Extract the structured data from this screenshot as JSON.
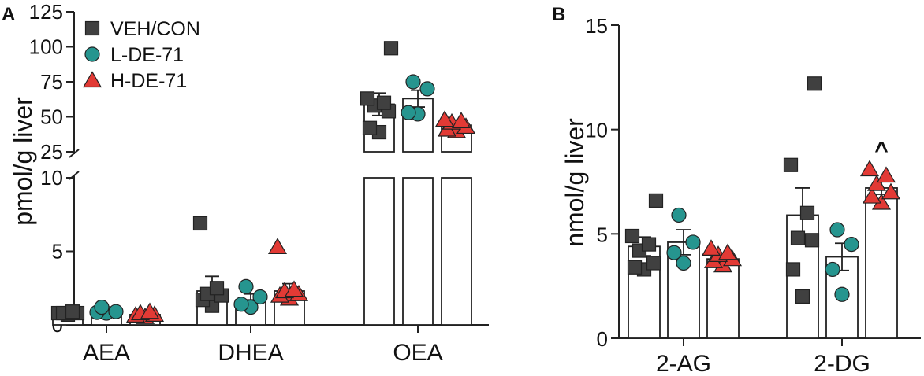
{
  "chart_data": [
    {
      "panel": "A",
      "type": "bar",
      "ylabel": "pmol/g liver",
      "y_axis_break": true,
      "ylim_lower": [
        0,
        10
      ],
      "ylim_upper": [
        25,
        125
      ],
      "yticks_lower": [
        "0",
        "5",
        "10"
      ],
      "yticks_upper": [
        "25",
        "50",
        "75",
        "100",
        "125"
      ],
      "categories": [
        "AEA",
        "DHEA",
        "OEA"
      ],
      "legend": {
        "position": "top-left",
        "entries": [
          {
            "label": "VEH/CON",
            "marker": "square",
            "color": "#404040"
          },
          {
            "label": "L-DE-71",
            "marker": "circle",
            "color": "#26958f"
          },
          {
            "label": "H-DE-71",
            "marker": "triangle",
            "color": "#e23a35"
          }
        ]
      },
      "series": [
        {
          "name": "VEH/CON",
          "marker": "square",
          "color": "#404040",
          "means": [
            0.8,
            2.3,
            59
          ],
          "sem": [
            0.05,
            1.0,
            8
          ],
          "points": [
            [
              0.7,
              0.8,
              0.8,
              0.8,
              0.9
            ],
            [
              1.3,
              1.7,
              2.0,
              2.1,
              2.5,
              6.9
            ],
            [
              39,
              42,
              54,
              58,
              60,
              63,
              99
            ]
          ]
        },
        {
          "name": "L-DE-71",
          "marker": "circle",
          "color": "#26958f",
          "means": [
            0.85,
            1.7,
            63
          ],
          "sem": [
            0.1,
            0.4,
            6
          ],
          "points": [
            [
              0.8,
              0.85,
              0.9,
              1.2
            ],
            [
              1.2,
              1.4,
              1.9,
              2.6
            ],
            [
              52,
              53,
              70,
              75
            ]
          ]
        },
        {
          "name": "H-DE-71",
          "marker": "triangle",
          "color": "#e23a35",
          "means": [
            0.7,
            2.3,
            44
          ],
          "sem": [
            0.1,
            0.5,
            2
          ],
          "points": [
            [
              0.55,
              0.65,
              0.7,
              0.8,
              0.9
            ],
            [
              1.8,
              2.0,
              2.1,
              2.3,
              2.4,
              5.3
            ],
            [
              40,
              41,
              43,
              46,
              47,
              48
            ]
          ]
        }
      ]
    },
    {
      "panel": "B",
      "type": "bar",
      "ylabel": "nmol/g liver",
      "ylim": [
        0,
        15
      ],
      "yticks": [
        "0",
        "5",
        "10",
        "15"
      ],
      "categories": [
        "2-AG",
        "2-DG"
      ],
      "annotations": [
        {
          "text": "^",
          "series": "H-DE-71",
          "category": "2-DG"
        }
      ],
      "series": [
        {
          "name": "VEH/CON",
          "marker": "square",
          "color": "#404040",
          "means": [
            4.4,
            5.9
          ],
          "sem": [
            0.45,
            1.3
          ],
          "points": [
            [
              3.3,
              3.4,
              3.6,
              4.2,
              4.5,
              4.9,
              6.6
            ],
            [
              2.0,
              3.3,
              4.7,
              4.8,
              6.0,
              8.3,
              12.2
            ]
          ]
        },
        {
          "name": "L-DE-71",
          "marker": "circle",
          "color": "#26958f",
          "means": [
            4.6,
            3.9
          ],
          "sem": [
            0.6,
            0.65
          ],
          "points": [
            [
              3.6,
              4.1,
              4.6,
              5.9
            ],
            [
              2.1,
              3.3,
              4.5,
              5.2
            ]
          ]
        },
        {
          "name": "H-DE-71",
          "marker": "triangle",
          "color": "#e23a35",
          "means": [
            3.8,
            7.2
          ],
          "sem": [
            0.15,
            0.3
          ],
          "points": [
            [
              3.5,
              3.7,
              3.8,
              4.0,
              4.1,
              4.3
            ],
            [
              6.5,
              6.8,
              7.0,
              7.4,
              7.8,
              8.1
            ]
          ]
        }
      ]
    }
  ]
}
